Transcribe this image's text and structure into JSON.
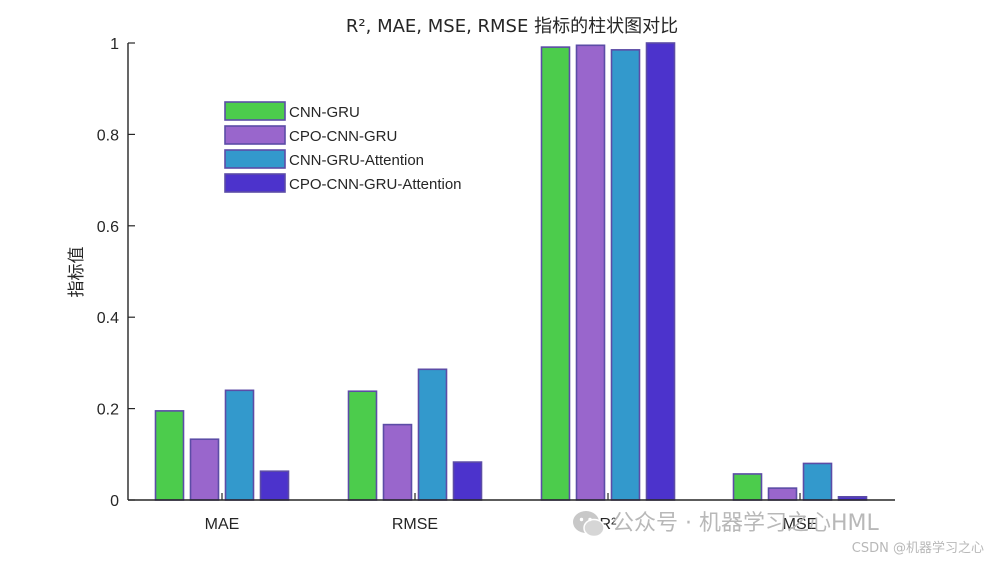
{
  "chart_data": {
    "type": "bar",
    "title": "R², MAE, MSE, RMSE 指标的柱状图对比",
    "xlabel": "",
    "ylabel": "指标值",
    "categories": [
      "MAE",
      "RMSE",
      "R²",
      "MSE"
    ],
    "ylim": [
      0,
      1
    ],
    "yticks": [
      0,
      0.2,
      0.4,
      0.6,
      0.8,
      1
    ],
    "ytick_labels": [
      "0",
      "0.2",
      "0.4",
      "0.6",
      "0.8",
      "1"
    ],
    "grid": false,
    "legend_position": "top-left",
    "series": [
      {
        "name": "CNN-GRU",
        "color": "#4ccc4c",
        "values": [
          0.195,
          0.238,
          0.991,
          0.057
        ]
      },
      {
        "name": "CPO-CNN-GRU",
        "color": "#9966cc",
        "values": [
          0.133,
          0.165,
          0.995,
          0.026
        ]
      },
      {
        "name": "CNN-GRU-Attention",
        "color": "#3399cc",
        "values": [
          0.24,
          0.286,
          0.985,
          0.08
        ]
      },
      {
        "name": "CPO-CNN-GRU-Attention",
        "color": "#4c33cc",
        "values": [
          0.063,
          0.083,
          1.0,
          0.007
        ]
      }
    ],
    "bar_edge_color": "#5c4ca6",
    "axis_color": "#262626"
  },
  "watermark": {
    "main": "公众号 · 机器学习之心HML",
    "sub": "CSDN @机器学习之心",
    "icon": "wechat-icon"
  }
}
